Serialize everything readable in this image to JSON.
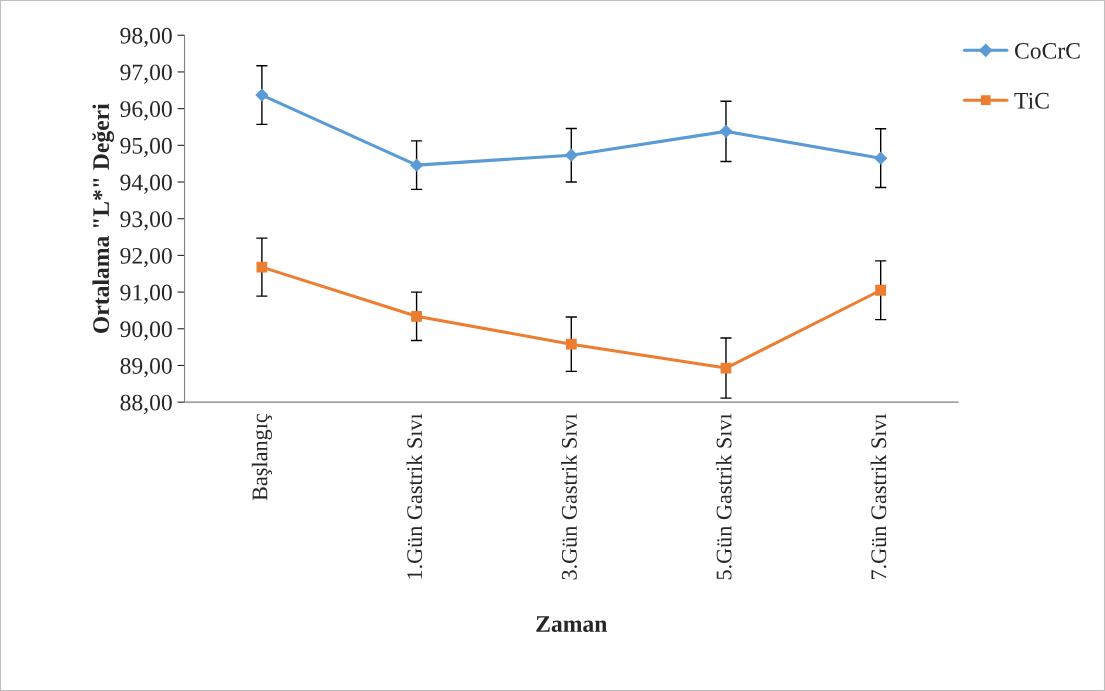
{
  "chart_data": {
    "type": "line",
    "xlabel": "Zaman",
    "ylabel": "Ortalama \"L*\" Değeri",
    "categories": [
      "Başlangıç",
      "1.Gün Gastrik Sıvı",
      "3.Gün Gastrik Sıvı",
      "5.Gün Gastrik Sıvı",
      "7.Gün Gastrik Sıvı"
    ],
    "series": [
      {
        "name": "CoCrC",
        "color": "#5b9bd5",
        "marker": "diamond",
        "values": [
          96.37,
          94.46,
          94.73,
          95.38,
          94.65
        ],
        "errors": [
          0.8,
          0.66,
          0.73,
          0.82,
          0.8
        ]
      },
      {
        "name": "TiC",
        "color": "#ed7d31",
        "marker": "square",
        "values": [
          91.68,
          90.34,
          89.58,
          88.93,
          91.05
        ],
        "errors": [
          0.79,
          0.66,
          0.74,
          0.82,
          0.8
        ]
      }
    ],
    "ylim": [
      88,
      98
    ],
    "yticks": [
      {
        "value": 88,
        "label": "88,00"
      },
      {
        "value": 89,
        "label": "89,00"
      },
      {
        "value": 90,
        "label": "90,00"
      },
      {
        "value": 91,
        "label": "91,00"
      },
      {
        "value": 92,
        "label": "92,00"
      },
      {
        "value": 93,
        "label": "93,00"
      },
      {
        "value": 94,
        "label": "94,00"
      },
      {
        "value": 95,
        "label": "95,00"
      },
      {
        "value": 96,
        "label": "96,00"
      },
      {
        "value": 97,
        "label": "97,00"
      },
      {
        "value": 98,
        "label": "98,00"
      }
    ],
    "grid": false,
    "legend": "top right",
    "line_style": "solid"
  }
}
